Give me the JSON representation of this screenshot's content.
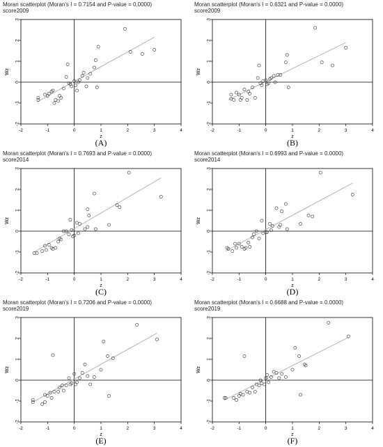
{
  "chart_data": [
    {
      "type": "scatter",
      "panel_label": "(A)",
      "title": "Moran scatterplot (Moran's I = 0.7154 and P-value = 0.0000)",
      "subtitle": "score2009",
      "xlabel": "z",
      "ylabel": "Wz",
      "xlim": [
        -2,
        4
      ],
      "ylim": [
        -2,
        3
      ],
      "xticks": [
        "-2",
        "-1",
        "0",
        "1",
        "2",
        "3",
        "4"
      ],
      "yticks": [
        "-2",
        "-1",
        "0",
        "1",
        "2",
        "3"
      ],
      "fit_line": [
        [
          -1.4,
          -0.95
        ],
        [
          3.0,
          2.15
        ]
      ],
      "points": [
        [
          -1.35,
          -0.75
        ],
        [
          -1.35,
          -0.85
        ],
        [
          -1.1,
          -0.6
        ],
        [
          -1.0,
          -0.65
        ],
        [
          -0.95,
          -0.55
        ],
        [
          -0.85,
          -0.45
        ],
        [
          -0.8,
          -0.4
        ],
        [
          -0.75,
          -1.0
        ],
        [
          -0.7,
          -0.85
        ],
        [
          -0.6,
          -0.9
        ],
        [
          -0.55,
          -0.65
        ],
        [
          -0.5,
          -0.75
        ],
        [
          -0.4,
          -0.3
        ],
        [
          -0.3,
          0.25
        ],
        [
          -0.25,
          0.85
        ],
        [
          -0.2,
          -0.05
        ],
        [
          -0.15,
          -0.1
        ],
        [
          -0.1,
          -0.2
        ],
        [
          0.0,
          0.05
        ],
        [
          0.05,
          -0.15
        ],
        [
          0.1,
          -0.4
        ],
        [
          0.15,
          0.0
        ],
        [
          0.2,
          0.1
        ],
        [
          0.3,
          0.3
        ],
        [
          0.35,
          0.45
        ],
        [
          0.45,
          -0.2
        ],
        [
          0.5,
          0.2
        ],
        [
          0.6,
          0.4
        ],
        [
          0.75,
          0.7
        ],
        [
          0.8,
          1.05
        ],
        [
          0.85,
          -0.25
        ],
        [
          0.9,
          1.7
        ],
        [
          1.9,
          2.55
        ],
        [
          2.1,
          1.45
        ],
        [
          2.55,
          1.35
        ],
        [
          3.0,
          1.55
        ]
      ]
    },
    {
      "type": "scatter",
      "panel_label": "(B)",
      "title": "Moran scatterplot (Moran's I = 0.6321 and P-value = 0.0000)",
      "subtitle": "score2009",
      "xlabel": "z",
      "ylabel": "Wz",
      "xlim": [
        -2,
        4
      ],
      "ylim": [
        -2,
        3
      ],
      "xticks": [
        "-2",
        "-1",
        "0",
        "1",
        "2",
        "3",
        "4"
      ],
      "yticks": [
        "-2",
        "-1",
        "0",
        "1",
        "2",
        "3"
      ],
      "fit_line": [
        [
          -1.4,
          -0.85
        ],
        [
          3.0,
          1.9
        ]
      ],
      "points": [
        [
          -1.3,
          -0.6
        ],
        [
          -1.3,
          -0.8
        ],
        [
          -1.2,
          -0.85
        ],
        [
          -1.1,
          -0.5
        ],
        [
          -1.0,
          -0.6
        ],
        [
          -0.95,
          -0.85
        ],
        [
          -0.9,
          -0.75
        ],
        [
          -0.8,
          -0.35
        ],
        [
          -0.7,
          -0.85
        ],
        [
          -0.65,
          -0.45
        ],
        [
          -0.6,
          -0.55
        ],
        [
          -0.5,
          -0.25
        ],
        [
          -0.4,
          -0.75
        ],
        [
          -0.3,
          0.2
        ],
        [
          -0.25,
          0.8
        ],
        [
          -0.2,
          -0.05
        ],
        [
          -0.15,
          -0.15
        ],
        [
          -0.1,
          0.05
        ],
        [
          0.0,
          0.1
        ],
        [
          0.05,
          -0.1
        ],
        [
          0.1,
          -0.05
        ],
        [
          0.15,
          0.15
        ],
        [
          0.2,
          0.2
        ],
        [
          0.3,
          0.3
        ],
        [
          0.35,
          0.0
        ],
        [
          0.45,
          0.35
        ],
        [
          0.55,
          0.35
        ],
        [
          0.75,
          0.95
        ],
        [
          0.8,
          1.3
        ],
        [
          0.85,
          -0.25
        ],
        [
          1.85,
          2.6
        ],
        [
          2.1,
          0.95
        ],
        [
          2.5,
          0.8
        ],
        [
          3.0,
          1.65
        ]
      ]
    },
    {
      "type": "scatter",
      "panel_label": "(C)",
      "title": "Moran scatterplot (Moran's I = 0.7693 and P-value = 0.0000)",
      "subtitle": "score2014",
      "xlabel": "z",
      "ylabel": "Wz",
      "xlim": [
        -2,
        4
      ],
      "ylim": [
        -2,
        3
      ],
      "xticks": [
        "-2",
        "-1",
        "0",
        "1",
        "2",
        "3",
        "4"
      ],
      "yticks": [
        "-2",
        "-1",
        "0",
        "1",
        "2",
        "3"
      ],
      "fit_line": [
        [
          -1.5,
          -1.0
        ],
        [
          3.25,
          2.55
        ]
      ],
      "points": [
        [
          -1.5,
          -1.05
        ],
        [
          -1.4,
          -1.05
        ],
        [
          -1.2,
          -0.95
        ],
        [
          -1.1,
          -0.7
        ],
        [
          -1.05,
          -0.9
        ],
        [
          -0.95,
          -0.65
        ],
        [
          -0.85,
          -0.8
        ],
        [
          -0.8,
          -0.85
        ],
        [
          -0.7,
          -0.8
        ],
        [
          -0.6,
          -0.5
        ],
        [
          -0.55,
          -0.35
        ],
        [
          -0.5,
          -0.4
        ],
        [
          -0.4,
          0.0
        ],
        [
          -0.3,
          0.0
        ],
        [
          -0.2,
          -0.15
        ],
        [
          -0.15,
          0.55
        ],
        [
          -0.1,
          0.05
        ],
        [
          -0.05,
          -0.25
        ],
        [
          0.0,
          -0.2
        ],
        [
          0.1,
          0.4
        ],
        [
          0.15,
          -0.1
        ],
        [
          0.2,
          0.35
        ],
        [
          0.4,
          0.1
        ],
        [
          0.5,
          0.2
        ],
        [
          0.5,
          1.05
        ],
        [
          0.55,
          0.75
        ],
        [
          0.75,
          1.8
        ],
        [
          0.8,
          0.1
        ],
        [
          1.3,
          0.3
        ],
        [
          1.6,
          1.25
        ],
        [
          1.7,
          1.15
        ],
        [
          2.05,
          2.8
        ],
        [
          3.25,
          1.65
        ]
      ]
    },
    {
      "type": "scatter",
      "panel_label": "(D)",
      "title": "Moran scatterplot (Moran's I = 0.6993 and P-value = 0.0000)",
      "subtitle": "score2014",
      "xlabel": "z",
      "ylabel": "Wz",
      "xlim": [
        -2,
        4
      ],
      "ylim": [
        -2,
        3
      ],
      "xticks": [
        "-2",
        "-1",
        "0",
        "1",
        "2",
        "3",
        "4"
      ],
      "yticks": [
        "-2",
        "-1",
        "0",
        "1",
        "2",
        "3"
      ],
      "fit_line": [
        [
          -1.5,
          -0.95
        ],
        [
          3.25,
          2.3
        ]
      ],
      "points": [
        [
          -1.45,
          -0.8
        ],
        [
          -1.4,
          -0.85
        ],
        [
          -1.25,
          -0.95
        ],
        [
          -1.15,
          -0.6
        ],
        [
          -1.1,
          -0.8
        ],
        [
          -1.0,
          -0.6
        ],
        [
          -0.9,
          -0.75
        ],
        [
          -0.8,
          -0.85
        ],
        [
          -0.75,
          -0.8
        ],
        [
          -0.65,
          -0.55
        ],
        [
          -0.6,
          -0.75
        ],
        [
          -0.5,
          -0.3
        ],
        [
          -0.45,
          -0.15
        ],
        [
          -0.35,
          0.0
        ],
        [
          -0.25,
          -0.35
        ],
        [
          -0.15,
          0.5
        ],
        [
          -0.1,
          -0.1
        ],
        [
          0.0,
          -0.05
        ],
        [
          0.05,
          -0.05
        ],
        [
          0.15,
          0.35
        ],
        [
          0.2,
          0.05
        ],
        [
          0.25,
          0.25
        ],
        [
          0.4,
          1.1
        ],
        [
          0.5,
          0.2
        ],
        [
          0.55,
          0.3
        ],
        [
          0.6,
          0.95
        ],
        [
          0.75,
          1.3
        ],
        [
          0.8,
          0.1
        ],
        [
          1.3,
          0.35
        ],
        [
          1.6,
          0.75
        ],
        [
          1.75,
          0.7
        ],
        [
          2.05,
          2.8
        ],
        [
          3.25,
          1.75
        ]
      ]
    },
    {
      "type": "scatter",
      "panel_label": "(E)",
      "title": "Moran scatterplot (Moran's I = 0.7206 and P-value = 0.0000)",
      "subtitle": "score2019",
      "xlabel": "z",
      "ylabel": "Wz",
      "xlim": [
        -2,
        4
      ],
      "ylim": [
        -2,
        3
      ],
      "xticks": [
        "-2",
        "-1",
        "0",
        "1",
        "2",
        "3",
        "4"
      ],
      "yticks": [
        "-2",
        "-1",
        "0",
        "1",
        "2",
        "3"
      ],
      "fit_line": [
        [
          -1.55,
          -1.05
        ],
        [
          3.1,
          2.25
        ]
      ],
      "points": [
        [
          -1.55,
          -0.95
        ],
        [
          -1.55,
          -1.05
        ],
        [
          -1.2,
          -1.15
        ],
        [
          -1.1,
          -1.05
        ],
        [
          -1.1,
          -0.7
        ],
        [
          -1.0,
          -0.75
        ],
        [
          -0.9,
          -0.6
        ],
        [
          -0.85,
          -0.85
        ],
        [
          -0.8,
          1.2
        ],
        [
          -0.75,
          -0.55
        ],
        [
          -0.6,
          -0.55
        ],
        [
          -0.55,
          -0.35
        ],
        [
          -0.45,
          -0.25
        ],
        [
          -0.4,
          -0.5
        ],
        [
          -0.3,
          -0.25
        ],
        [
          -0.2,
          0.1
        ],
        [
          -0.15,
          -0.2
        ],
        [
          -0.1,
          -0.15
        ],
        [
          0.0,
          0.3
        ],
        [
          0.05,
          -0.2
        ],
        [
          0.1,
          -0.1
        ],
        [
          0.2,
          0.1
        ],
        [
          0.3,
          0.35
        ],
        [
          0.4,
          0.75
        ],
        [
          0.5,
          0.2
        ],
        [
          0.6,
          -0.2
        ],
        [
          0.75,
          0.15
        ],
        [
          1.0,
          0.5
        ],
        [
          1.1,
          1.85
        ],
        [
          1.25,
          1.15
        ],
        [
          1.3,
          -0.75
        ],
        [
          1.45,
          1.05
        ],
        [
          2.35,
          2.65
        ],
        [
          3.1,
          1.95
        ]
      ]
    },
    {
      "type": "scatter",
      "panel_label": "(F)",
      "title": "Moran scatterplot (Moran's I = 0.6688 and P-value = 0.0000)",
      "subtitle": "score2019",
      "xlabel": "z",
      "ylabel": "Wz",
      "xlim": [
        -2,
        4
      ],
      "ylim": [
        -2,
        3
      ],
      "xticks": [
        "-2",
        "-1",
        "0",
        "1",
        "2",
        "3",
        "4"
      ],
      "yticks": [
        "-2",
        "-1",
        "0",
        "1",
        "2",
        "3"
      ],
      "fit_line": [
        [
          -1.55,
          -0.95
        ],
        [
          3.1,
          2.05
        ]
      ],
      "points": [
        [
          -1.55,
          -0.85
        ],
        [
          -1.5,
          -0.85
        ],
        [
          -1.2,
          -0.85
        ],
        [
          -1.1,
          -0.95
        ],
        [
          -1.0,
          -0.75
        ],
        [
          -0.95,
          -0.65
        ],
        [
          -0.85,
          -0.7
        ],
        [
          -0.8,
          1.15
        ],
        [
          -0.7,
          -0.55
        ],
        [
          -0.6,
          -0.6
        ],
        [
          -0.5,
          -0.35
        ],
        [
          -0.4,
          -0.55
        ],
        [
          -0.35,
          -0.2
        ],
        [
          -0.25,
          -0.25
        ],
        [
          -0.2,
          0.0
        ],
        [
          -0.15,
          -0.15
        ],
        [
          -0.05,
          -0.2
        ],
        [
          0.0,
          0.1
        ],
        [
          0.05,
          0.25
        ],
        [
          0.1,
          -0.1
        ],
        [
          0.2,
          0.15
        ],
        [
          0.3,
          0.4
        ],
        [
          0.4,
          0.35
        ],
        [
          0.5,
          0.1
        ],
        [
          0.6,
          0.3
        ],
        [
          0.75,
          0.15
        ],
        [
          1.0,
          0.5
        ],
        [
          1.1,
          1.55
        ],
        [
          1.25,
          1.15
        ],
        [
          1.3,
          -0.7
        ],
        [
          1.45,
          0.75
        ],
        [
          1.5,
          0.7
        ],
        [
          2.35,
          2.75
        ],
        [
          3.1,
          2.1
        ]
      ]
    }
  ]
}
